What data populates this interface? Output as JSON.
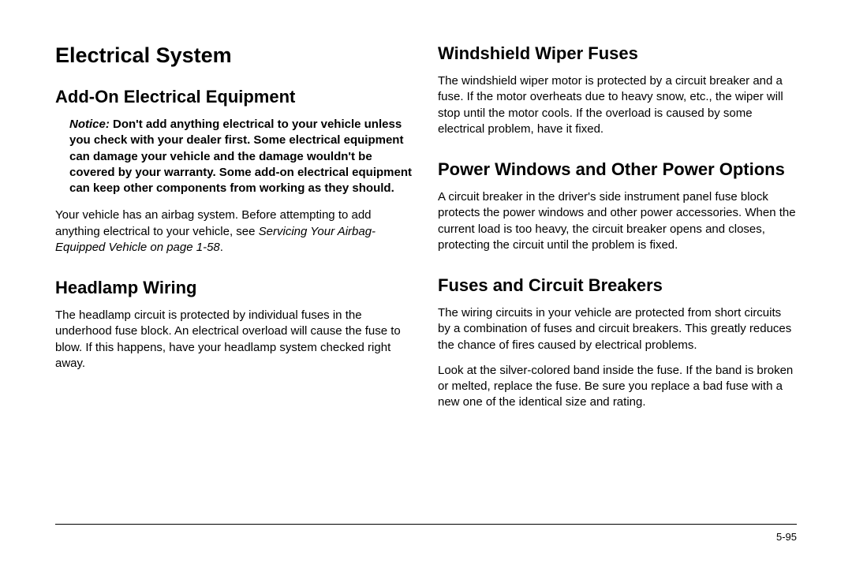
{
  "left": {
    "title": "Electrical System",
    "section1": {
      "heading": "Add-On Electrical Equipment",
      "noticeLabel": "Notice:",
      "noticeText": " Don't add anything electrical to your vehicle unless you check with your dealer first. Some electrical equipment can damage your vehicle and the damage wouldn't be covered by your warranty. Some add-on electrical equipment can keep other components from working as they should.",
      "para1a": "Your vehicle has an airbag system. Before attempting to add anything electrical to your vehicle, see ",
      "para1italic": "Servicing Your Airbag-Equipped Vehicle on page 1-58",
      "para1b": "."
    },
    "section2": {
      "heading": "Headlamp Wiring",
      "para": "The headlamp circuit is protected by individual fuses in the underhood fuse block. An electrical overload will cause the fuse to blow. If this happens, have your headlamp system checked right away."
    }
  },
  "right": {
    "section1": {
      "heading": "Windshield Wiper Fuses",
      "para": "The windshield wiper motor is protected by a circuit breaker and a fuse. If the motor overheats due to heavy snow, etc., the wiper will stop until the motor cools. If the overload is caused by some electrical problem, have it fixed."
    },
    "section2": {
      "heading": "Power Windows and Other Power Options",
      "para": "A circuit breaker in the driver's side instrument panel fuse block protects the power windows and other power accessories. When the current load is too heavy, the circuit breaker opens and closes, protecting the circuit until the problem is fixed."
    },
    "section3": {
      "heading": "Fuses and Circuit Breakers",
      "para1": "The wiring circuits in your vehicle are protected from short circuits by a combination of fuses and circuit breakers. This greatly reduces the chance of fires caused by electrical problems.",
      "para2": "Look at the silver-colored band inside the fuse. If the band is broken or melted, replace the fuse. Be sure you replace a bad fuse with a new one of the identical size and rating."
    }
  },
  "pageNumber": "5-95"
}
